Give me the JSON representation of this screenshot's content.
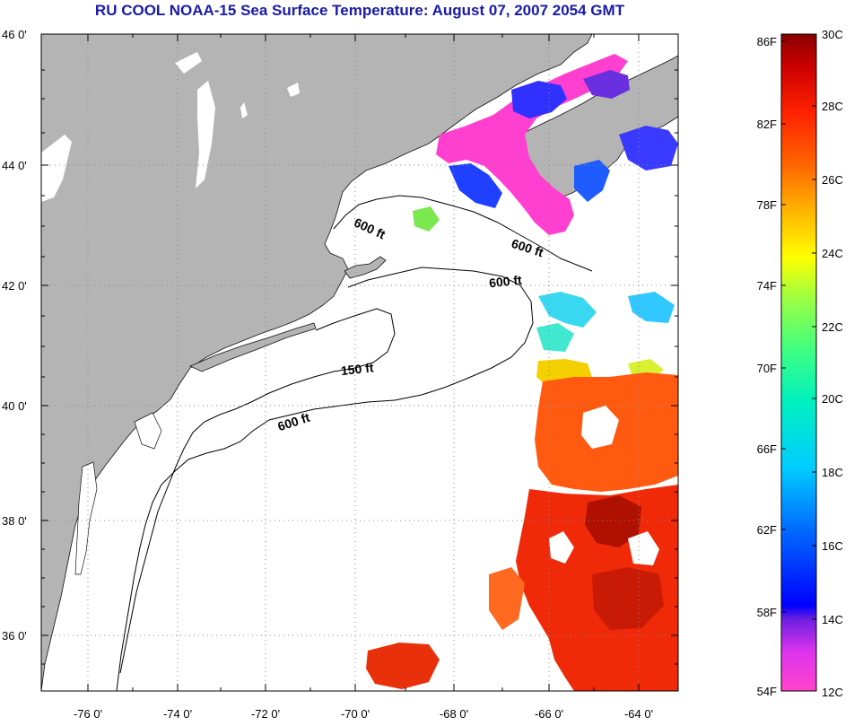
{
  "title": "RU COOL  NOAA-15  Sea Surface Temperature:  August 07, 2007 2054 GMT",
  "map": {
    "latitude_labels": [
      "46 0'",
      "44 0'",
      "42 0'",
      "40 0'",
      "38 0'",
      "36 0'"
    ],
    "longitude_labels": [
      "-76 0'",
      "-74 0'",
      "-72 0'",
      "-70 0'",
      "-68 0'",
      "-66 0'",
      "-64 0'"
    ],
    "contour_labels": [
      "600 ft",
      "600 ft",
      "600 ft",
      "150 ft",
      "600 ft"
    ],
    "colors": {
      "land": "#b4b4b4",
      "water_no_data": "#ffffff",
      "gridline": "#888888"
    }
  },
  "colorbar": {
    "fahrenheit_labels": [
      "86F",
      "82F",
      "78F",
      "74F",
      "70F",
      "66F",
      "62F",
      "58F",
      "54F"
    ],
    "celsius_labels": [
      "30C",
      "28C",
      "26C",
      "24C",
      "22C",
      "20C",
      "18C",
      "16C",
      "14C",
      "12C"
    ],
    "range_c": [
      12,
      30
    ],
    "range_f": [
      54,
      86
    ]
  }
}
